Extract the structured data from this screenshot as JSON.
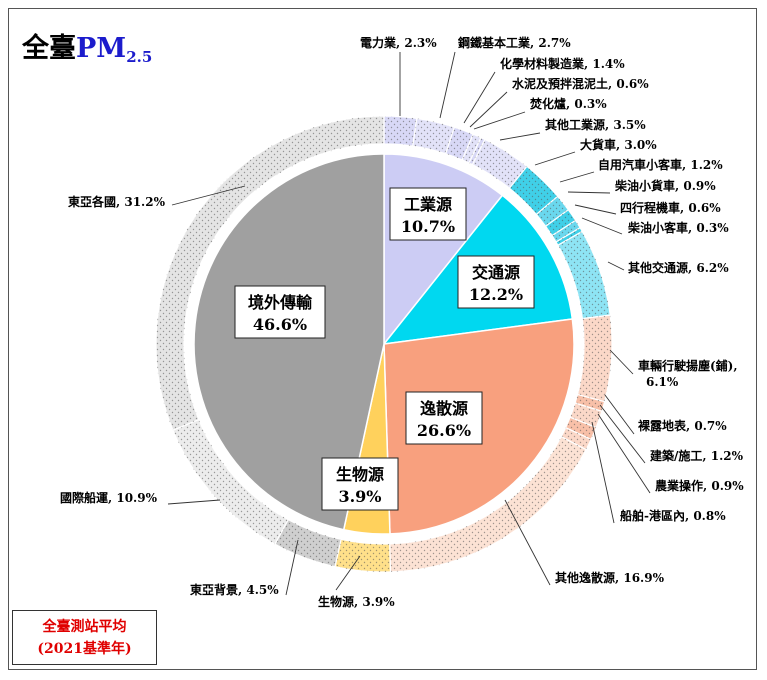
{
  "title": {
    "main": "全臺",
    "pm": "PM",
    "sub": "2.5"
  },
  "source_box": {
    "line1": "全臺測站平均",
    "line2": "(2021基準年)"
  },
  "chart_data": {
    "type": "pie",
    "title": "全臺PM2.5",
    "inner": [
      {
        "name": "工業源",
        "value": 10.7,
        "label": "10.7%",
        "color": "#ccccf4"
      },
      {
        "name": "交通源",
        "value": 12.2,
        "label": "12.2%",
        "color": "#00d8f0"
      },
      {
        "name": "逸散源",
        "value": 26.6,
        "label": "26.6%",
        "color": "#f8a07e"
      },
      {
        "name": "生物源",
        "value": 3.9,
        "label": "3.9%",
        "color": "#ffd15c"
      },
      {
        "name": "境外傳輸",
        "value": 46.6,
        "label": "46.6%",
        "color": "#a0a0a0"
      }
    ],
    "outer": [
      {
        "name": "電力業",
        "value": 2.3,
        "label": "電力業, 2.3%",
        "color": "#d8d8f6"
      },
      {
        "name": "鋼鐵基本工業",
        "value": 2.7,
        "label": "鋼鐵基本工業, 2.7%",
        "color": "#e2e2f8"
      },
      {
        "name": "化學材料製造業",
        "value": 1.4,
        "label": "化學材料製造業, 1.4%",
        "color": "#d8d8f6"
      },
      {
        "name": "水泥及預拌混泥土",
        "value": 0.6,
        "label": "水泥及預拌混泥土, 0.6%",
        "color": "#e2e2f8"
      },
      {
        "name": "焚化爐",
        "value": 0.3,
        "label": "焚化爐, 0.3%",
        "color": "#d8d8f6"
      },
      {
        "name": "其他工業源",
        "value": 3.5,
        "label": "其他工業源, 3.5%",
        "color": "#e2e2f8"
      },
      {
        "name": "大貨車",
        "value": 3.0,
        "label": "大貨車, 3.0%",
        "color": "#40d0e8"
      },
      {
        "name": "自用汽車小客車",
        "value": 1.2,
        "label": "自用汽車小客車, 1.2%",
        "color": "#6ad8ee"
      },
      {
        "name": "柴油小貨車",
        "value": 0.9,
        "label": "柴油小貨車, 0.9%",
        "color": "#40d0e8"
      },
      {
        "name": "四行程機車",
        "value": 0.6,
        "label": "四行程機車, 0.6%",
        "color": "#6ad8ee"
      },
      {
        "name": "柴油小客車",
        "value": 0.3,
        "label": "柴油小客車, 0.3%",
        "color": "#40d0e8"
      },
      {
        "name": "其他交通源",
        "value": 6.2,
        "label": "其他交通源, 6.2%",
        "color": "#8ee4f4"
      },
      {
        "name": "車輛行駛揚塵(鋪)",
        "value": 6.1,
        "label": "車輛行駛揚塵(鋪), 6.1%",
        "color": "#fbd8c8"
      },
      {
        "name": "裸露地表",
        "value": 0.7,
        "label": "裸露地表, 0.7%",
        "color": "#f8c0a8"
      },
      {
        "name": "建築/施工",
        "value": 1.2,
        "label": "建築/施工, 1.2%",
        "color": "#fbd8c8"
      },
      {
        "name": "農業操作",
        "value": 0.9,
        "label": "農業操作, 0.9%",
        "color": "#f8c0a8"
      },
      {
        "name": "船舶-港區內",
        "value": 0.8,
        "label": "船舶-港區內, 0.8%",
        "color": "#fbd8c8"
      },
      {
        "name": "其他逸散源",
        "value": 16.9,
        "label": "其他逸散源, 16.9%",
        "color": "#fce2d4"
      },
      {
        "name": "生物源",
        "value": 3.9,
        "label": "生物源, 3.9%",
        "color": "#ffe08a"
      },
      {
        "name": "東亞背景",
        "value": 4.5,
        "label": "東亞背景, 4.5%",
        "color": "#cfcfcf"
      },
      {
        "name": "國際船運",
        "value": 10.9,
        "label": "國際船運, 10.9%",
        "color": "#ececec"
      },
      {
        "name": "東亞各國",
        "value": 31.2,
        "label": "東亞各國, 31.2%",
        "color": "#e4e4e4"
      }
    ]
  }
}
